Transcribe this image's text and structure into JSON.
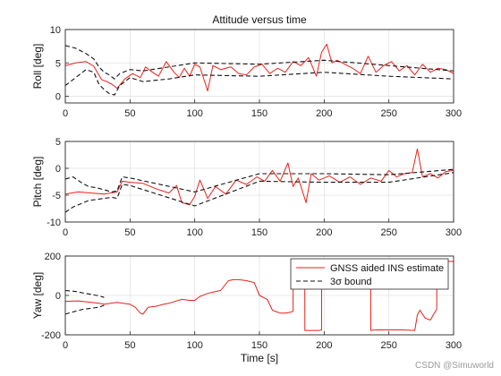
{
  "figure": {
    "watermark": "CSDN @Simuworld"
  },
  "chart_data": [
    {
      "type": "line",
      "title": "Attitude versus time",
      "xlabel": "",
      "ylabel": "Roll [deg]",
      "xlim": [
        0,
        300
      ],
      "ylim": [
        -1,
        10
      ],
      "xticks": [
        0,
        50,
        100,
        150,
        200,
        250,
        300
      ],
      "yticks": [
        0,
        5,
        10
      ],
      "grid": true,
      "series": [
        {
          "role": "estimate",
          "color": "#e8221b",
          "x": [
            0,
            8,
            16,
            22,
            28,
            32,
            36,
            40,
            46,
            52,
            58,
            62,
            66,
            72,
            78,
            84,
            88,
            92,
            96,
            100,
            104,
            108,
            110,
            114,
            120,
            128,
            134,
            140,
            146,
            152,
            158,
            164,
            170,
            176,
            182,
            188,
            194,
            198,
            202,
            206,
            210,
            216,
            222,
            228,
            234,
            240,
            246,
            252,
            258,
            264,
            270,
            276,
            282,
            288,
            294,
            300
          ],
          "values": [
            4.6,
            5.0,
            5.2,
            4.5,
            2.5,
            2.2,
            1.8,
            1.2,
            2.6,
            3.4,
            2.8,
            4.4,
            3.8,
            3.0,
            5.2,
            3.6,
            2.8,
            4.2,
            3.0,
            4.8,
            4.4,
            2.0,
            0.8,
            4.6,
            4.0,
            4.4,
            3.4,
            3.2,
            4.4,
            4.8,
            3.4,
            4.2,
            3.6,
            5.2,
            4.6,
            5.8,
            3.0,
            6.6,
            7.8,
            5.0,
            5.4,
            4.8,
            4.2,
            3.4,
            6.0,
            3.6,
            4.6,
            5.2,
            3.8,
            4.6,
            3.2,
            4.8,
            3.6,
            4.2,
            4.0,
            3.4
          ]
        },
        {
          "role": "upper bound",
          "color": "#111111",
          "x": [
            0,
            8,
            16,
            22,
            26,
            30,
            34,
            38,
            42,
            50,
            60,
            80,
            100,
            150,
            200,
            250,
            300
          ],
          "values": [
            7.6,
            7.2,
            6.4,
            5.6,
            4.4,
            3.6,
            3.2,
            2.6,
            3.4,
            4.0,
            3.8,
            4.4,
            5.0,
            4.8,
            5.4,
            4.6,
            3.8
          ]
        },
        {
          "role": "lower bound",
          "color": "#111111",
          "x": [
            0,
            8,
            16,
            22,
            26,
            30,
            34,
            38,
            42,
            50,
            60,
            80,
            100,
            150,
            200,
            250,
            300
          ],
          "values": [
            1.6,
            2.8,
            4.0,
            3.6,
            1.8,
            1.0,
            0.4,
            0.2,
            1.6,
            2.8,
            2.2,
            2.6,
            3.2,
            3.0,
            3.6,
            3.0,
            2.6
          ]
        }
      ]
    },
    {
      "type": "line",
      "title": "",
      "xlabel": "",
      "ylabel": "Pitch [deg]",
      "xlim": [
        0,
        300
      ],
      "ylim": [
        -10,
        5
      ],
      "xticks": [
        0,
        50,
        100,
        150,
        200,
        250,
        300
      ],
      "yticks": [
        -10,
        -5,
        0,
        5
      ],
      "grid": true,
      "series": [
        {
          "role": "estimate",
          "color": "#e8221b",
          "x": [
            0,
            10,
            20,
            30,
            40,
            44,
            50,
            60,
            70,
            80,
            86,
            90,
            96,
            100,
            104,
            110,
            116,
            124,
            132,
            140,
            148,
            154,
            160,
            166,
            172,
            176,
            180,
            186,
            190,
            196,
            204,
            212,
            220,
            228,
            236,
            244,
            250,
            256,
            262,
            268,
            272,
            276,
            282,
            288,
            294,
            300
          ],
          "values": [
            -4.8,
            -4.4,
            -4.6,
            -4.8,
            -4.4,
            -2.4,
            -2.6,
            -2.8,
            -3.8,
            -4.6,
            -3.2,
            -6.4,
            -6.8,
            -5.2,
            -2.2,
            -5.6,
            -3.4,
            -4.8,
            -2.2,
            -3.0,
            -1.6,
            -2.4,
            -0.4,
            -2.4,
            1.0,
            -3.4,
            -1.8,
            -6.4,
            -1.0,
            -2.2,
            -1.4,
            -2.6,
            -1.6,
            -3.0,
            -1.8,
            -2.4,
            -0.4,
            -1.6,
            -1.0,
            -0.8,
            3.6,
            -1.6,
            -1.0,
            -1.8,
            -0.6,
            -0.4
          ]
        },
        {
          "role": "upper bound",
          "color": "#111111",
          "x": [
            0,
            6,
            12,
            18,
            24,
            30,
            36,
            40,
            44,
            50,
            100,
            150,
            200,
            250,
            300
          ],
          "values": [
            -2.0,
            -1.6,
            -2.6,
            -3.4,
            -3.6,
            -4.0,
            -4.4,
            -4.2,
            -1.6,
            -1.8,
            -4.4,
            -1.0,
            -1.0,
            -1.2,
            -0.2
          ]
        },
        {
          "role": "lower bound",
          "color": "#111111",
          "x": [
            0,
            6,
            12,
            18,
            24,
            30,
            36,
            40,
            44,
            50,
            100,
            150,
            200,
            250,
            300
          ],
          "values": [
            -8.2,
            -7.2,
            -6.6,
            -6.0,
            -5.8,
            -5.6,
            -5.4,
            -5.6,
            -3.0,
            -3.2,
            -7.0,
            -2.4,
            -2.6,
            -2.6,
            -0.8
          ]
        }
      ]
    },
    {
      "type": "line",
      "title": "",
      "xlabel": "Time [s]",
      "ylabel": "Yaw [deg]",
      "xlim": [
        0,
        300
      ],
      "ylim": [
        -200,
        200
      ],
      "xticks": [
        0,
        50,
        100,
        150,
        200,
        250,
        300
      ],
      "yticks": [
        -200,
        0,
        200
      ],
      "grid": true,
      "legend": {
        "location": "top-right",
        "entries": [
          "GNSS aided INS estimate",
          "3σ bound"
        ]
      },
      "series": [
        {
          "name": "GNSS aided INS estimate",
          "role": "estimate",
          "color": "#e8221b",
          "x": [
            0,
            10,
            20,
            26,
            30,
            40,
            50,
            54,
            58,
            60,
            64,
            70,
            76,
            80,
            90,
            96,
            100,
            104,
            110,
            116,
            120,
            126,
            130,
            134,
            140,
            146,
            150,
            156,
            160,
            166,
            170,
            174,
            176,
            176.1,
            180,
            184,
            185,
            185.1,
            196,
            198,
            198.1,
            200,
            210,
            220,
            226,
            230,
            234,
            236,
            236.1,
            240,
            260,
            270,
            272,
            274,
            278,
            282,
            286,
            287,
            287.1,
            300
          ],
          "values": [
            -30,
            -28,
            -35,
            -40,
            -45,
            -35,
            -45,
            -60,
            -90,
            -95,
            -60,
            -55,
            -45,
            -40,
            -20,
            -25,
            -25,
            -5,
            10,
            20,
            25,
            75,
            80,
            80,
            75,
            65,
            0,
            -20,
            -75,
            -90,
            -90,
            -85,
            -80,
            180,
            175,
            175,
            172,
            -178,
            -178,
            -175,
            178,
            178,
            178,
            175,
            170,
            165,
            100,
            60,
            -178,
            -175,
            -175,
            -178,
            -100,
            -75,
            -115,
            -125,
            -80,
            -70,
            175,
            172
          ]
        },
        {
          "name": "3σ bound",
          "role": "upper bound",
          "color": "#111111",
          "x": [
            0,
            8,
            14,
            20,
            26,
            30
          ],
          "values": [
            25,
            20,
            12,
            5,
            -2,
            -10
          ]
        },
        {
          "role": "lower bound",
          "color": "#111111",
          "x": [
            0,
            8,
            14,
            20,
            26,
            30
          ],
          "values": [
            -95,
            -80,
            -70,
            -65,
            -60,
            -50
          ]
        }
      ]
    }
  ]
}
